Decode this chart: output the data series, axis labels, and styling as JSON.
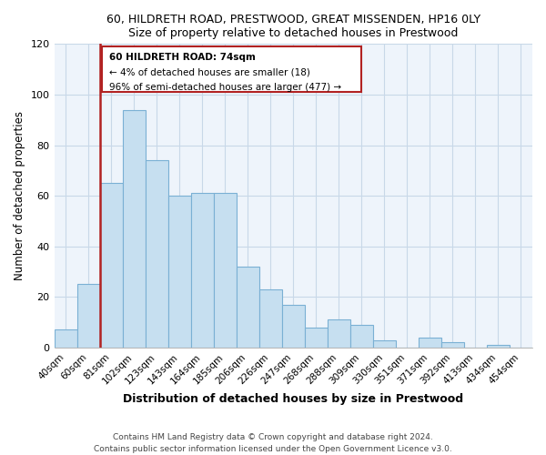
{
  "title1": "60, HILDRETH ROAD, PRESTWOOD, GREAT MISSENDEN, HP16 0LY",
  "title2": "Size of property relative to detached houses in Prestwood",
  "xlabel": "Distribution of detached houses by size in Prestwood",
  "ylabel": "Number of detached properties",
  "bar_labels": [
    "40sqm",
    "60sqm",
    "81sqm",
    "102sqm",
    "123sqm",
    "143sqm",
    "164sqm",
    "185sqm",
    "206sqm",
    "226sqm",
    "247sqm",
    "268sqm",
    "288sqm",
    "309sqm",
    "330sqm",
    "351sqm",
    "371sqm",
    "392sqm",
    "413sqm",
    "434sqm",
    "454sqm"
  ],
  "bar_heights": [
    7,
    25,
    65,
    94,
    74,
    60,
    61,
    61,
    32,
    23,
    17,
    8,
    11,
    9,
    3,
    0,
    4,
    2,
    0,
    1,
    0
  ],
  "bar_color": "#c6dff0",
  "bar_edge_color": "#7ab0d4",
  "annotation_line1": "60 HILDRETH ROAD: 74sqm",
  "annotation_line2": "← 4% of detached houses are smaller (18)",
  "annotation_line3": "96% of semi-detached houses are larger (477) →",
  "marker_color": "#b22222",
  "ylim": [
    0,
    120
  ],
  "yticks": [
    0,
    20,
    40,
    60,
    80,
    100,
    120
  ],
  "plot_bg_color": "#eef4fb",
  "grid_color": "#c8d8e8",
  "footer1": "Contains HM Land Registry data © Crown copyright and database right 2024.",
  "footer2": "Contains public sector information licensed under the Open Government Licence v3.0."
}
